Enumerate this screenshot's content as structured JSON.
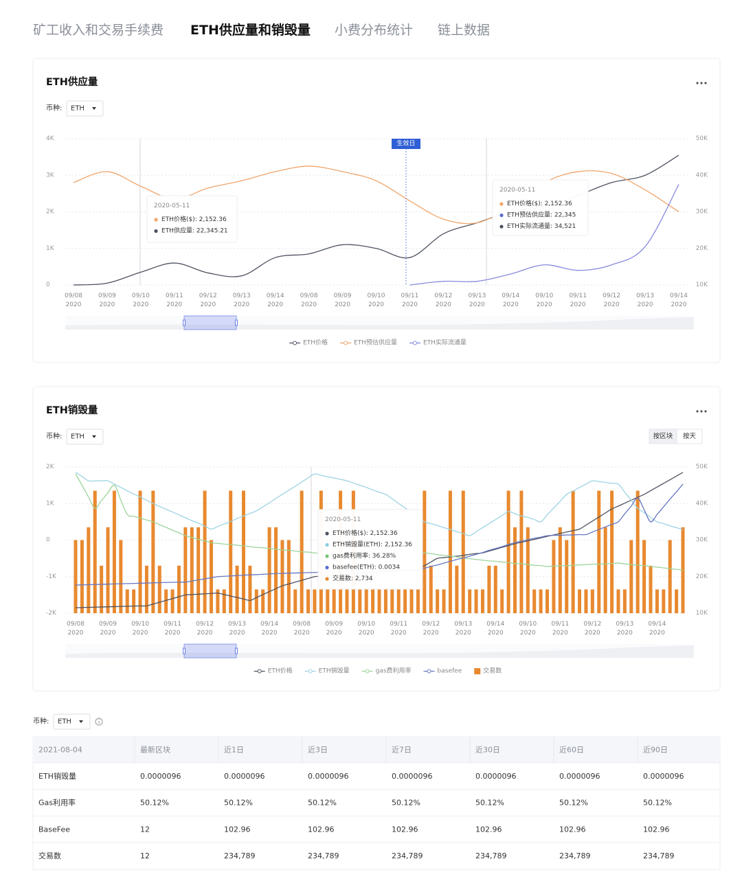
{
  "tabs": [
    "矿工收入和交易手续费",
    "ETH供应量和销毁量",
    "小费分布统计",
    "链上数据"
  ],
  "active_tab": 1,
  "chart_data": [
    {
      "type": "line",
      "title": "ETH供应量",
      "currency_label": "币种:",
      "currency": "ETH",
      "categories": [
        "09/08 2020",
        "09/09 2020",
        "09/10 2020",
        "09/11 2020",
        "09/12 2020",
        "09/13 2020",
        "09/14 2020",
        "09/08 2020",
        "09/09 2020",
        "09/10 2020",
        "09/11 2020",
        "09/12 2020",
        "09/13 2020",
        "09/14 2020",
        "09/10 2020",
        "09/11 2020",
        "09/12 2020",
        "09/13 2020",
        "09/14 2020"
      ],
      "ylim": [
        0,
        4000
      ],
      "yticks": [
        0,
        {
          "value": 1000,
          "label": "1K"
        },
        {
          "value": 2000,
          "label": "2K"
        },
        {
          "value": 3000,
          "label": "3K"
        },
        {
          "value": 4000,
          "label": "4K"
        }
      ],
      "y2lim": [
        10000,
        50000
      ],
      "y2ticks": [
        {
          "value": 10000,
          "label": "10K"
        },
        {
          "value": 20000,
          "label": "20K"
        },
        {
          "value": 30000,
          "label": "30K"
        },
        {
          "value": 40000,
          "label": "40K"
        },
        {
          "value": 50000,
          "label": "50K"
        }
      ],
      "grid": true,
      "series": [
        {
          "name": "ETH价格",
          "type": "line",
          "color": "#4d5260",
          "values": [
            0,
            50,
            350,
            600,
            330,
            250,
            750,
            850,
            1100,
            1000,
            750,
            1400,
            1700,
            2000,
            2150,
            2450,
            2800,
            3000,
            3550
          ]
        },
        {
          "name": "ETH预估供应量",
          "type": "line",
          "color": "#f0a56b",
          "values": [
            2800,
            3100,
            2700,
            2350,
            2650,
            2850,
            3100,
            3250,
            3100,
            2850,
            2300,
            1800,
            1700,
            2150,
            2800,
            3100,
            3050,
            2600,
            2000
          ]
        },
        {
          "name": "ETH实际流通量",
          "type": "line",
          "color": "#8589dc",
          "values": [
            null,
            null,
            null,
            null,
            null,
            null,
            null,
            null,
            null,
            null,
            0,
            100,
            100,
            300,
            550,
            400,
            550,
            1050,
            2750
          ]
        }
      ],
      "annotation": "生效日",
      "tooltips": [
        {
          "date": "2020-05-11",
          "items": [
            {
              "text": "ETH价格($): 2,152.36",
              "color": "#f0a56b"
            },
            {
              "text": "ETH供应量: 22,345.21",
              "color": "#4d5260"
            }
          ]
        },
        {
          "date": "2020-05-11",
          "items": [
            {
              "text": "ETH价格($): 2,152.36",
              "color": "#f0a56b"
            },
            {
              "text": "ETH预估供应量: 22,345",
              "color": "#5b6fd0"
            },
            {
              "text": "ETH实际流通量: 34,521",
              "color": "#4d5260"
            }
          ]
        }
      ]
    },
    {
      "type": "bar_line",
      "title": "ETH销毁量",
      "currency_label": "币种:",
      "currency": "ETH",
      "buttons": [
        "按区块",
        "按天"
      ],
      "categories": [
        "09/08 2020",
        null,
        null,
        null,
        null,
        "09/09 2020",
        null,
        null,
        null,
        null,
        "09/10 2020",
        null,
        null,
        null,
        null,
        "09/11 2020",
        null,
        null,
        null,
        null,
        "09/12 2020",
        null,
        null,
        null,
        null,
        "09/13 2020",
        null,
        null,
        null,
        null,
        "09/14 2020",
        null,
        null,
        null,
        null,
        "09/08 2020",
        null,
        null,
        null,
        null,
        "09/09 2020",
        null,
        null,
        null,
        null,
        "09/10 2020",
        null,
        null,
        null,
        null,
        "09/11 2020",
        null,
        null,
        null,
        null,
        "09/12 2020",
        null,
        null,
        null,
        null,
        "09/13 2020",
        null,
        null,
        null,
        null,
        "09/14 2020",
        null,
        null,
        null,
        null,
        "09/10 2020",
        null,
        null,
        null,
        null,
        "09/11 2020",
        null,
        null,
        null,
        null,
        "09/12 2020",
        null,
        null,
        null,
        null,
        "09/13 2020",
        null,
        null,
        null,
        null,
        "09/14 2020",
        null,
        null,
        null,
        null
      ],
      "ylim": [
        -2000,
        2000
      ],
      "yticks": [
        {
          "value": -2000,
          "label": "-2K"
        },
        {
          "value": -1000,
          "label": "-1K"
        },
        0,
        {
          "value": 1000,
          "label": "1K"
        },
        {
          "value": 2000,
          "label": "2K"
        }
      ],
      "y2lim": [
        10000,
        50000
      ],
      "y2ticks": [
        {
          "value": 10000,
          "label": "10K"
        },
        {
          "value": 20000,
          "label": "20K"
        },
        {
          "value": 30000,
          "label": "30K"
        },
        {
          "value": 40000,
          "label": "40K"
        },
        {
          "value": 50000,
          "label": "50K"
        }
      ],
      "grid": true,
      "series": [
        {
          "name": "ETH价格",
          "type": "line",
          "color": "#4d5260",
          "values": [
            -1850,
            -1845,
            -1840,
            -1835,
            -1830,
            -1825,
            -1820,
            -1815,
            -1810,
            -1805,
            -1800,
            -1800,
            -1750,
            -1700,
            -1650,
            -1600,
            -1550,
            -1500,
            -1490,
            -1480,
            -1470,
            -1460,
            -1450,
            -1490,
            -1530,
            -1570,
            -1610,
            -1650,
            -1570,
            -1490,
            -1410,
            -1330,
            -1250,
            -1200,
            -1150,
            -1100,
            -1050,
            -1000,
            -990,
            -975,
            -960,
            -950,
            -935,
            -925,
            -910,
            -900,
            -885,
            -875,
            -860,
            -850,
            -835,
            -825,
            -810,
            -800,
            -700,
            -600,
            -500,
            -480,
            -460,
            -440,
            -420,
            -390,
            -370,
            -350,
            -300,
            -250,
            -200,
            -150,
            -100,
            -60,
            -20,
            20,
            60,
            100,
            140,
            180,
            220,
            260,
            300,
            410,
            520,
            630,
            740,
            850,
            930,
            1010,
            1090,
            1170,
            1250,
            1350,
            1450,
            1550,
            1650,
            1750,
            1850
          ]
        },
        {
          "name": "ETH销毁量",
          "type": "line",
          "color": "#9cd3e3",
          "values": [
            1850,
            1740,
            1620,
            1620,
            1620,
            1620,
            1530,
            1440,
            1350,
            1260,
            1180,
            1090,
            1000,
            920,
            840,
            770,
            690,
            610,
            530,
            460,
            380,
            300,
            370,
            440,
            510,
            590,
            660,
            730,
            800,
            910,
            1020,
            1140,
            1250,
            1360,
            1470,
            1590,
            1700,
            1810,
            1770,
            1730,
            1700,
            1660,
            1620,
            1560,
            1500,
            1440,
            1370,
            1310,
            1250,
            1130,
            1000,
            880,
            750,
            630,
            500,
            450,
            400,
            340,
            290,
            230,
            180,
            120,
            230,
            340,
            450,
            560,
            670,
            780,
            720,
            660,
            620,
            560,
            500,
            690,
            880,
            1060,
            1250,
            1340,
            1440,
            1530,
            1620,
            1600,
            1580,
            1550,
            1530,
            1310,
            1090,
            870,
            750,
            620,
            500,
            450,
            390,
            340,
            280
          ]
        },
        {
          "name": "gas费利用率",
          "type": "line",
          "color": "#9dd49a",
          "values": [
            1810,
            1500,
            1180,
            870,
            1080,
            1290,
            1500,
            1100,
            700,
            650,
            600,
            550,
            500,
            420,
            350,
            270,
            200,
            120,
            70,
            20,
            -20,
            -70,
            -90,
            -110,
            -120,
            -140,
            -160,
            -180,
            -200,
            -210,
            -230,
            -250,
            -270,
            -280,
            -300,
            -320,
            -330,
            -350,
            -370,
            -390,
            -400,
            -420,
            -440,
            -430,
            -420,
            -420,
            -410,
            -400,
            -390,
            -380,
            -380,
            -370,
            -360,
            -350,
            -350,
            -370,
            -400,
            -420,
            -440,
            -460,
            -490,
            -510,
            -530,
            -550,
            -570,
            -580,
            -600,
            -620,
            -640,
            -650,
            -670,
            -690,
            -700,
            -720,
            -710,
            -700,
            -700,
            -690,
            -680,
            -670,
            -660,
            -660,
            -650,
            -640,
            -630,
            -650,
            -670,
            -690,
            -700,
            -720,
            -740,
            -760,
            -780,
            -800,
            -820
          ]
        },
        {
          "name": "basefee",
          "type": "line",
          "color": "#6677c2",
          "values": [
            -1230,
            -1225,
            -1220,
            -1215,
            -1210,
            -1205,
            -1200,
            -1195,
            -1190,
            -1185,
            -1180,
            -1175,
            -1170,
            -1165,
            -1160,
            -1155,
            -1150,
            -1150,
            -1120,
            -1090,
            -1060,
            -1030,
            -1000,
            -990,
            -980,
            -970,
            -960,
            -950,
            -945,
            -935,
            -925,
            -915,
            -910,
            -905,
            -900,
            -895,
            -890,
            -885,
            -880,
            -875,
            -870,
            -865,
            -860,
            -855,
            -850,
            -845,
            -840,
            -835,
            -830,
            -830,
            -825,
            -825,
            -820,
            -820,
            -770,
            -720,
            -680,
            -630,
            -580,
            -530,
            -490,
            -440,
            -390,
            -340,
            -280,
            -230,
            -180,
            -120,
            -70,
            -30,
            10,
            50,
            80,
            120,
            130,
            130,
            140,
            140,
            150,
            150,
            220,
            290,
            360,
            430,
            500,
            720,
            930,
            1150,
            830,
            500,
            700,
            910,
            1120,
            1320,
            1530
          ]
        },
        {
          "name": "交易数",
          "type": "bar",
          "color": "#e8892f",
          "values": [
            0,
            0,
            350,
            1350,
            -700,
            350,
            1350,
            0,
            -1350,
            -1350,
            1350,
            -700,
            1350,
            -700,
            -1350,
            -1350,
            -700,
            350,
            350,
            350,
            1350,
            0,
            -1350,
            -1350,
            1350,
            -700,
            1350,
            -700,
            -1350,
            -1350,
            350,
            350,
            0,
            0,
            -1350,
            1350,
            -1350,
            -1350,
            1350,
            -1350,
            -1350,
            1350,
            -1350,
            1350,
            -1350,
            -1350,
            -1350,
            -1350,
            -1350,
            -1350,
            -1350,
            -1350,
            -1350,
            -1350,
            1350,
            -700,
            -1350,
            -1350,
            1350,
            -700,
            1350,
            -1350,
            -1350,
            -1350,
            -700,
            -700,
            -1350,
            1350,
            350,
            1350,
            350,
            -1350,
            -1350,
            -1350,
            0,
            350,
            0,
            1350,
            -1350,
            -1350,
            -1350,
            1350,
            350,
            1350,
            -1350,
            -1350,
            0,
            1350,
            0,
            -700,
            -1350,
            -1350,
            0,
            -1350,
            350
          ]
        }
      ],
      "tooltips": [
        {
          "date": "2020-05-11",
          "items": [
            {
              "text": "ETH价格($): 2,152.36",
              "color": "#4d5260"
            },
            {
              "text": "ETH销毁量(ETH): 2,152.36",
              "color": "#8ccbe0"
            },
            {
              "text": "gas费利用率: 36.28%",
              "color": "#7cc47a"
            },
            {
              "text": "basefee(ETH): 0.0034",
              "color": "#5b6fd0"
            },
            {
              "text": "交易数: 2,734",
              "color": "#e8892f"
            }
          ]
        }
      ]
    }
  ],
  "table": {
    "currency_label": "币种:",
    "currency": "ETH",
    "header": [
      "2021-08-04",
      "最新区块",
      "近1日",
      "近3日",
      "近7日",
      "近30日",
      "近60日",
      "近90日"
    ],
    "rows": [
      [
        "ETH销毁量",
        "0.0000096",
        "0.0000096",
        "0.0000096",
        "0.0000096",
        "0.0000096",
        "0.0000096",
        "0.0000096"
      ],
      [
        "Gas利用率",
        "50.12%",
        "50.12%",
        "50.12%",
        "50.12%",
        "50.12%",
        "50.12%",
        "50.12%"
      ],
      [
        "BaseFee",
        "12",
        "102.96",
        "102.96",
        "102.96",
        "102.96",
        "102.96",
        "102.96"
      ],
      [
        "交易数",
        "12",
        "234,789",
        "234,789",
        "234,789",
        "234,789",
        "234,789",
        "234,789"
      ]
    ]
  }
}
